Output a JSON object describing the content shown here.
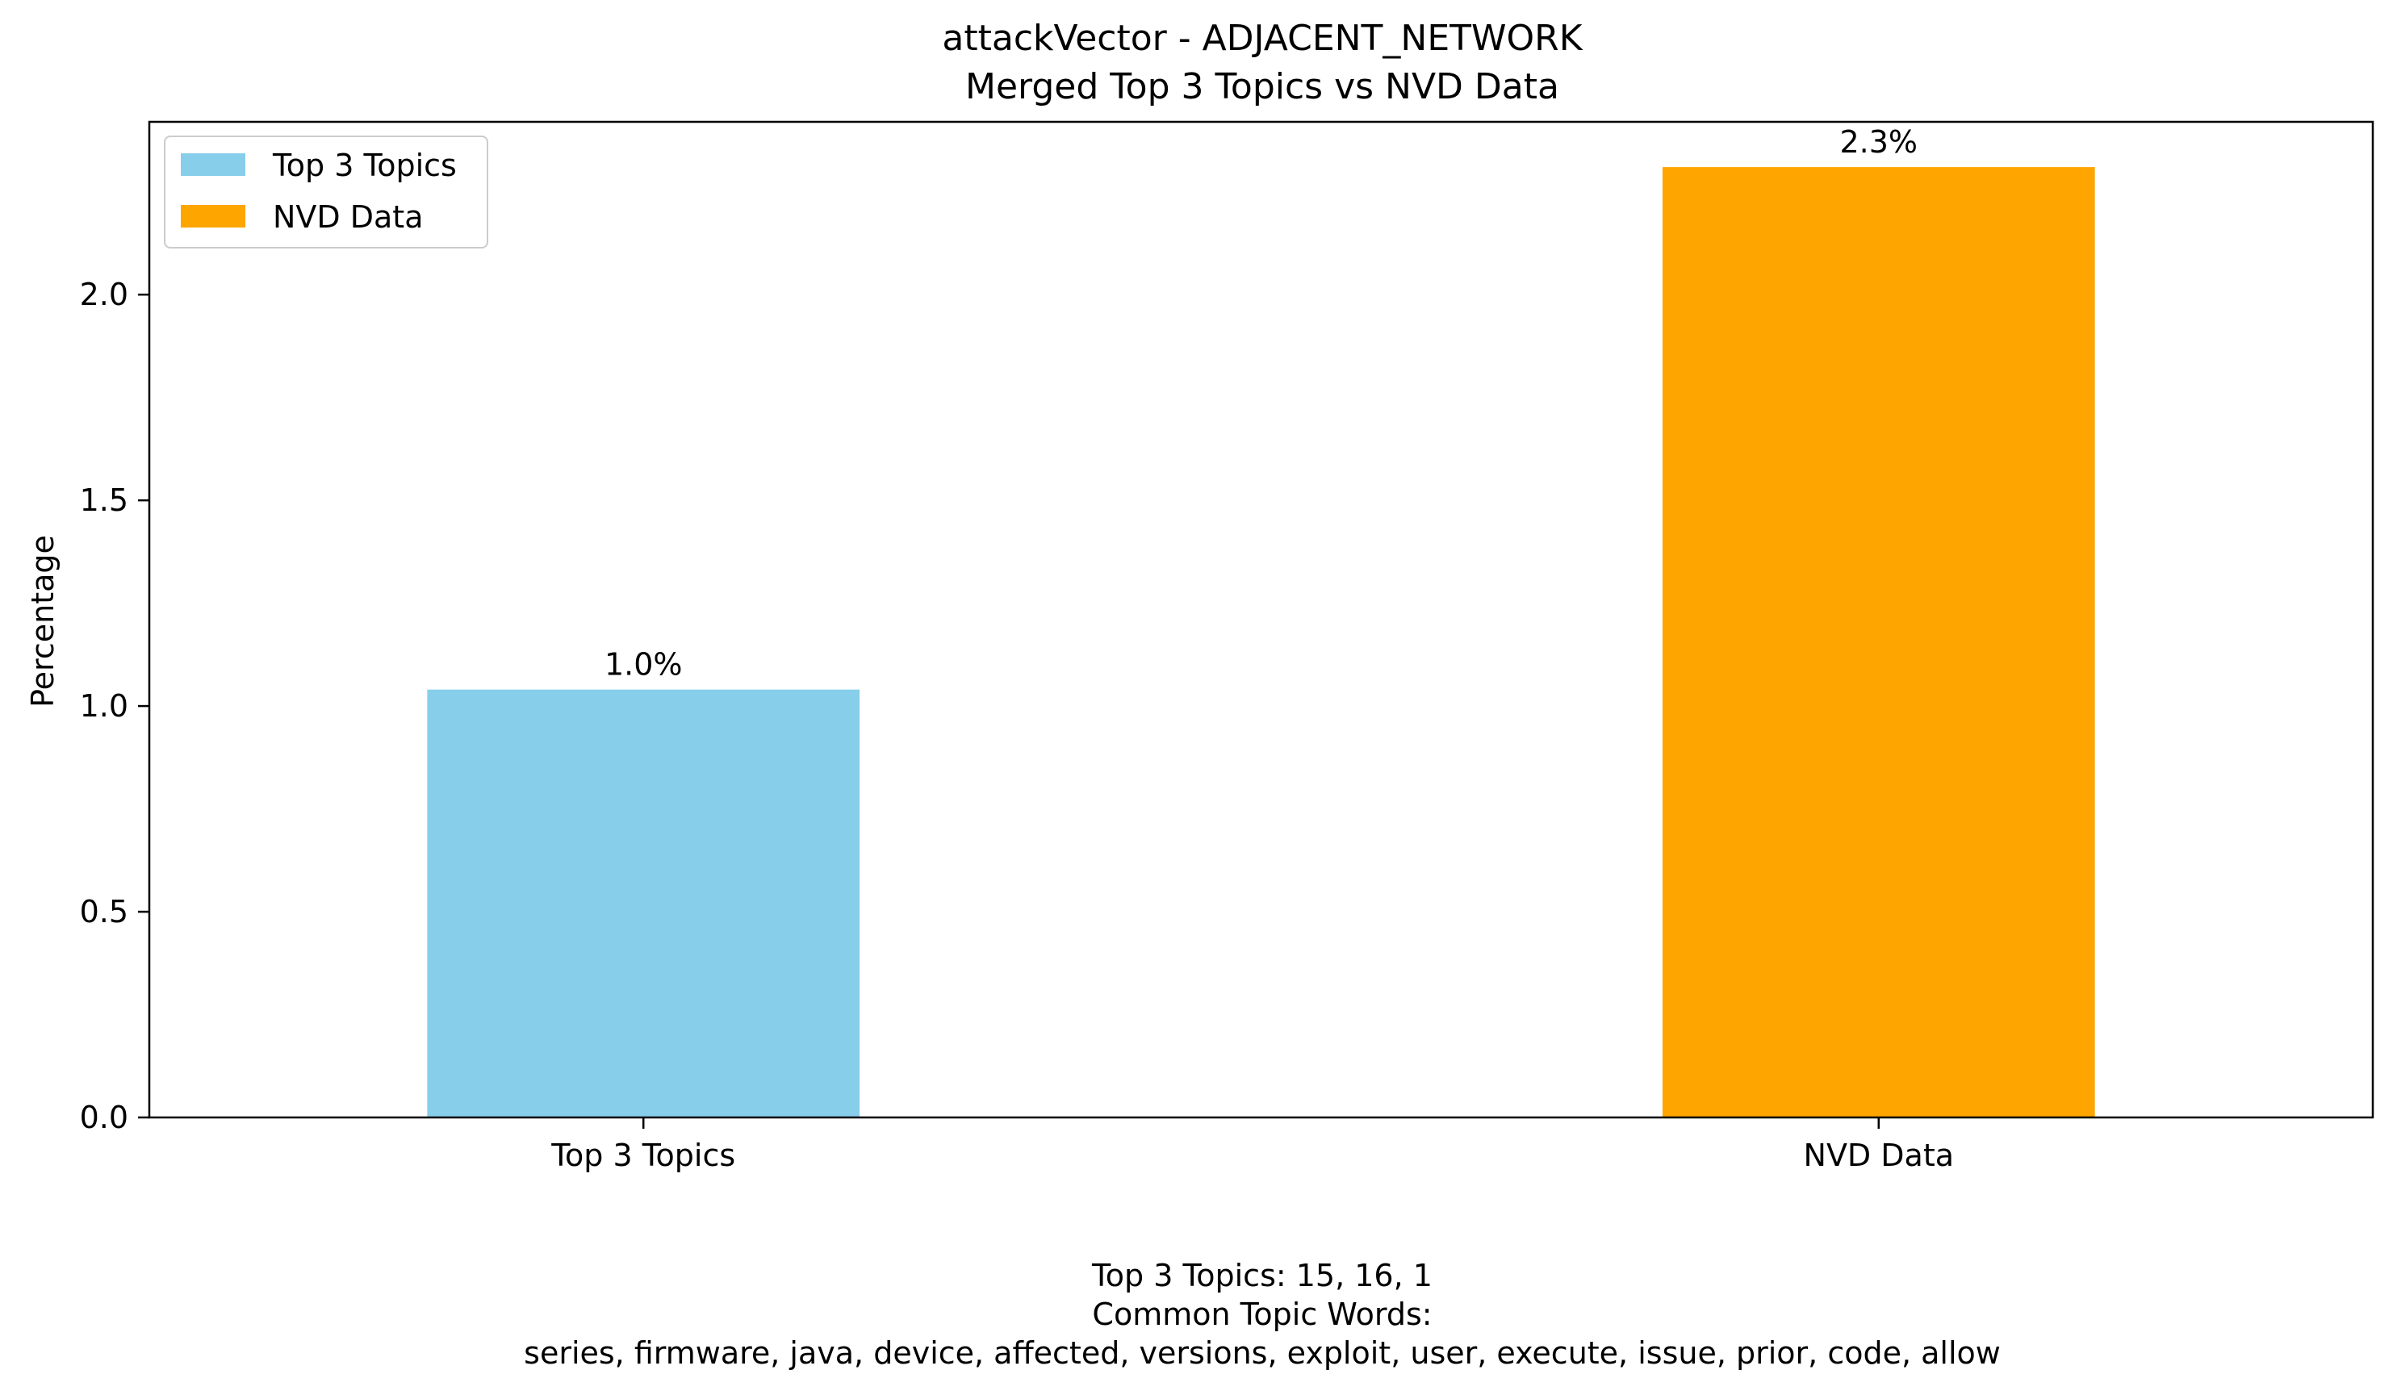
{
  "chart_data": {
    "type": "bar",
    "title_lines": [
      "attackVector - ADJACENT_NETWORK",
      "Merged Top 3 Topics vs NVD Data"
    ],
    "xlabel": "",
    "ylabel": "Percentage",
    "categories": [
      "Top 3 Topics",
      "NVD Data"
    ],
    "values": [
      1.04,
      2.31
    ],
    "value_labels": [
      "1.0%",
      "2.3%"
    ],
    "colors": [
      "#87ceeb",
      "#ffa500"
    ],
    "ylim": [
      0,
      2.42
    ],
    "yticks": [
      0.0,
      0.5,
      1.0,
      1.5,
      2.0
    ],
    "ytick_labels": [
      "0.0",
      "0.5",
      "1.0",
      "1.5",
      "2.0"
    ],
    "grid": false,
    "legend": {
      "placement": "top-left",
      "entries": [
        {
          "label": "Top 3 Topics",
          "color": "#87ceeb"
        },
        {
          "label": "NVD Data",
          "color": "#ffa500"
        }
      ]
    },
    "footnote_lines": [
      "Top 3 Topics: 15, 16, 1",
      "Common Topic Words:",
      "series,  firmware,  java,  device,  affected,  versions,  exploit,  user,  execute,  issue,  prior,  code,  allow"
    ]
  }
}
